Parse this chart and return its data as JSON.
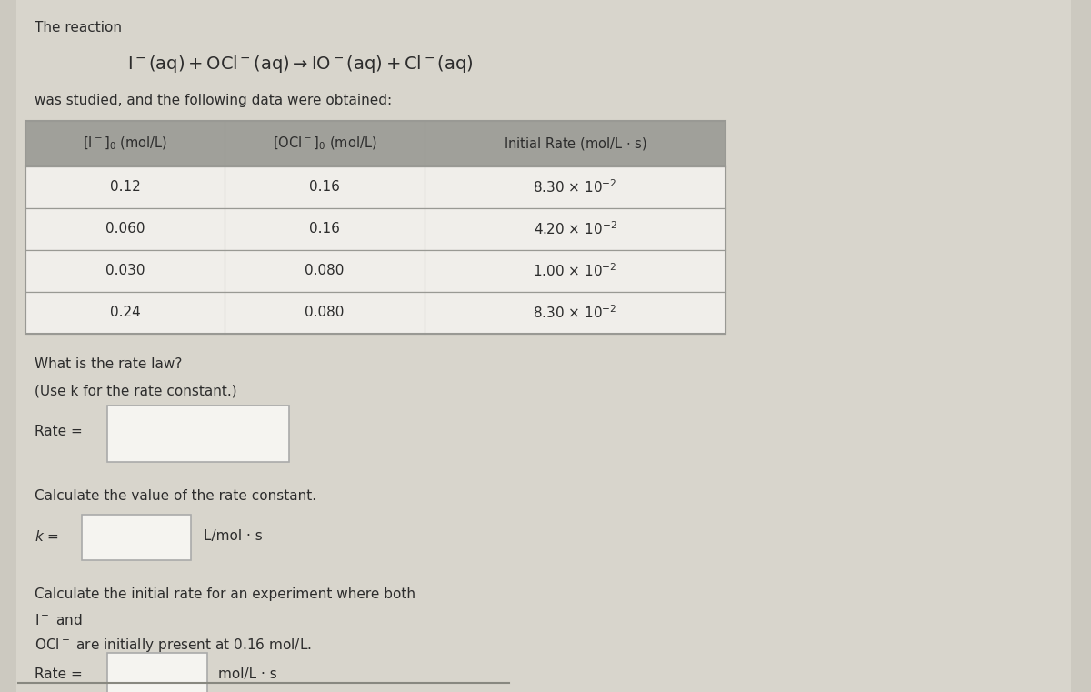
{
  "bg_color": "#ccc9c0",
  "content_bg": "#d8d5cc",
  "title_text": "The reaction",
  "subtitle_text": "was studied, and the following data were obtained:",
  "header_bg": "#a0a09a",
  "row_bg": "#f0eeea",
  "table_border": "#999994",
  "q1_text": "What is the rate law?",
  "q1_sub": "(Use k for the rate constant.)",
  "rate_label": "Rate =",
  "q2_text": "Calculate the value of the rate constant.",
  "k_unit": "L/mol · s",
  "q3_line1": "Calculate the initial rate for an experiment where both",
  "q3_line2": "I⁻ and",
  "q3_line3": "OCl⁻ are initially present at 0.16 mol/L.",
  "rate2_label": "Rate =",
  "rate2_unit": "mol/L · s",
  "text_color": "#2c2c2c",
  "input_box_color": "#f5f4f0",
  "input_border_color": "#aaaaaa",
  "table_data_col1": [
    "0.12",
    "0.060",
    "0.030",
    "0.24"
  ],
  "table_data_col2": [
    "0.16",
    "0.16",
    "0.080",
    "0.080"
  ],
  "table_data_rates": [
    "8.30",
    "4.20",
    "1.00",
    "8.30"
  ],
  "rate_exp": "-2",
  "fig_width": 12.0,
  "fig_height": 7.61,
  "dpi": 100
}
